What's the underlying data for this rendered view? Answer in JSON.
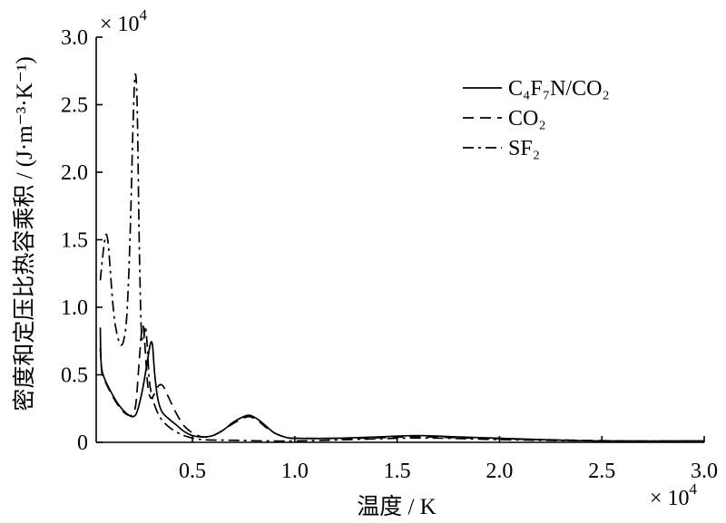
{
  "chart_data": {
    "type": "line",
    "xlabel": "温度 / K",
    "ylabel": "密度和定压比热容乘积 / (J·m⁻³·K⁻¹)",
    "x_multiplier": {
      "base": "× 10",
      "exp": "4"
    },
    "y_multiplier": {
      "base": "× 10",
      "exp": "4"
    },
    "xlim": [
      0.03,
      3.0
    ],
    "ylim": [
      0,
      3.0
    ],
    "xticks": [
      "0.5",
      "1.0",
      "1.5",
      "2.0",
      "2.5",
      "3.0"
    ],
    "yticks": [
      "0",
      "0.5",
      "1.0",
      "1.5",
      "2.0",
      "2.5",
      "3.0"
    ],
    "grid": false,
    "legend_position": "top-right",
    "series": [
      {
        "name": "C₄F₇N/CO₂",
        "color": "#000000",
        "x": [
          0.05,
          0.053,
          0.06,
          0.08,
          0.1,
          0.13,
          0.16,
          0.19,
          0.21,
          0.225,
          0.24,
          0.26,
          0.28,
          0.295,
          0.305,
          0.315,
          0.33,
          0.35,
          0.38,
          0.42,
          0.46,
          0.5,
          0.55,
          0.6,
          0.65,
          0.7,
          0.75,
          0.78,
          0.82,
          0.86,
          0.9,
          0.95,
          1.0,
          1.2,
          1.4,
          1.6,
          1.8,
          2.0,
          2.2,
          2.5,
          3.0
        ],
        "y": [
          0.85,
          0.62,
          0.52,
          0.44,
          0.38,
          0.3,
          0.24,
          0.2,
          0.19,
          0.21,
          0.28,
          0.42,
          0.6,
          0.73,
          0.72,
          0.52,
          0.33,
          0.23,
          0.18,
          0.13,
          0.08,
          0.05,
          0.04,
          0.05,
          0.09,
          0.15,
          0.19,
          0.2,
          0.17,
          0.12,
          0.07,
          0.04,
          0.03,
          0.03,
          0.04,
          0.05,
          0.04,
          0.03,
          0.02,
          0.01,
          0.01
        ]
      },
      {
        "name": "CO₂",
        "color": "#000000",
        "x": [
          0.05,
          0.055,
          0.06,
          0.08,
          0.1,
          0.13,
          0.16,
          0.19,
          0.21,
          0.225,
          0.24,
          0.255,
          0.265,
          0.28,
          0.295,
          0.315,
          0.335,
          0.355,
          0.375,
          0.4,
          0.43,
          0.46,
          0.5,
          0.55,
          0.6,
          0.65,
          0.7,
          0.75,
          0.78,
          0.82,
          0.86,
          0.9,
          0.95,
          1.0,
          1.3,
          1.6,
          1.9,
          2.2,
          2.6,
          3.0
        ],
        "y": [
          0.7,
          0.56,
          0.5,
          0.43,
          0.37,
          0.29,
          0.23,
          0.2,
          0.21,
          0.3,
          0.6,
          0.86,
          0.78,
          0.45,
          0.33,
          0.36,
          0.42,
          0.42,
          0.36,
          0.28,
          0.19,
          0.12,
          0.07,
          0.04,
          0.05,
          0.09,
          0.14,
          0.18,
          0.19,
          0.16,
          0.11,
          0.07,
          0.04,
          0.03,
          0.03,
          0.04,
          0.03,
          0.02,
          0.01,
          0.005
        ]
      },
      {
        "name": "SF₂",
        "color": "#000000",
        "x": [
          0.05,
          0.06,
          0.07,
          0.08,
          0.09,
          0.1,
          0.11,
          0.12,
          0.135,
          0.15,
          0.165,
          0.18,
          0.195,
          0.21,
          0.22,
          0.23,
          0.24,
          0.25,
          0.26,
          0.27,
          0.28,
          0.29,
          0.31,
          0.34,
          0.38,
          0.43,
          0.48,
          0.55,
          0.7,
          1.0,
          1.5,
          1.75,
          2.0,
          2.5,
          3.0
        ],
        "y": [
          1.2,
          1.35,
          1.48,
          1.54,
          1.45,
          1.25,
          1.05,
          0.9,
          0.78,
          0.72,
          0.76,
          0.95,
          1.5,
          2.35,
          2.72,
          2.5,
          1.5,
          0.85,
          0.75,
          0.86,
          0.7,
          0.45,
          0.3,
          0.19,
          0.12,
          0.07,
          0.04,
          0.02,
          0.015,
          0.01,
          0.03,
          0.03,
          0.02,
          0.01,
          0.01
        ]
      }
    ]
  }
}
